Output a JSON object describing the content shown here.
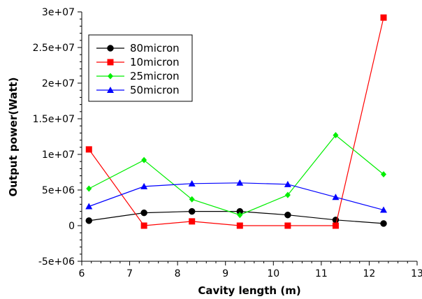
{
  "chart_data": {
    "type": "line",
    "title": "",
    "xlabel": "Cavity length (m)",
    "ylabel": "Output power(Watt)",
    "xlim": [
      6,
      13
    ],
    "ylim": [
      -5000000,
      30000000
    ],
    "x_ticks": [
      6,
      7,
      8,
      9,
      10,
      11,
      12,
      13
    ],
    "x_tick_labels": [
      "6",
      "7",
      "8",
      "9",
      "10",
      "11",
      "12",
      "13"
    ],
    "y_ticks": [
      -5000000,
      0,
      5000000,
      10000000,
      15000000,
      20000000,
      25000000,
      30000000
    ],
    "y_tick_labels": [
      "-5e+06",
      "0",
      "5e+06",
      "1e+07",
      "1.5e+07",
      "2e+07",
      "2.5e+07",
      "3e+07"
    ],
    "grid": false,
    "legend_position": "top-left",
    "series": [
      {
        "name": "80micron",
        "color": "#000000",
        "marker": "circle",
        "x": [
          6.15,
          7.3,
          8.3,
          9.3,
          10.3,
          11.3,
          12.3
        ],
        "y": [
          700000,
          1800000,
          2000000,
          2000000,
          1500000,
          800000,
          300000
        ]
      },
      {
        "name": "10micron",
        "color": "#ff0000",
        "marker": "square",
        "x": [
          6.15,
          7.3,
          8.3,
          9.3,
          10.3,
          11.3,
          12.3
        ],
        "y": [
          10700000,
          0,
          600000,
          0,
          0,
          0,
          29200000
        ]
      },
      {
        "name": "25micron",
        "color": "#00ee00",
        "marker": "diamond",
        "x": [
          6.15,
          7.3,
          8.3,
          9.3,
          10.3,
          11.3,
          12.3
        ],
        "y": [
          5200000,
          9200000,
          3700000,
          1500000,
          4300000,
          12700000,
          7200000
        ]
      },
      {
        "name": "50micron",
        "color": "#0000ff",
        "marker": "triangle",
        "x": [
          6.15,
          7.3,
          8.3,
          9.3,
          10.3,
          11.3,
          12.3
        ],
        "y": [
          2700000,
          5500000,
          5900000,
          6000000,
          5800000,
          4000000,
          2200000
        ]
      }
    ]
  }
}
